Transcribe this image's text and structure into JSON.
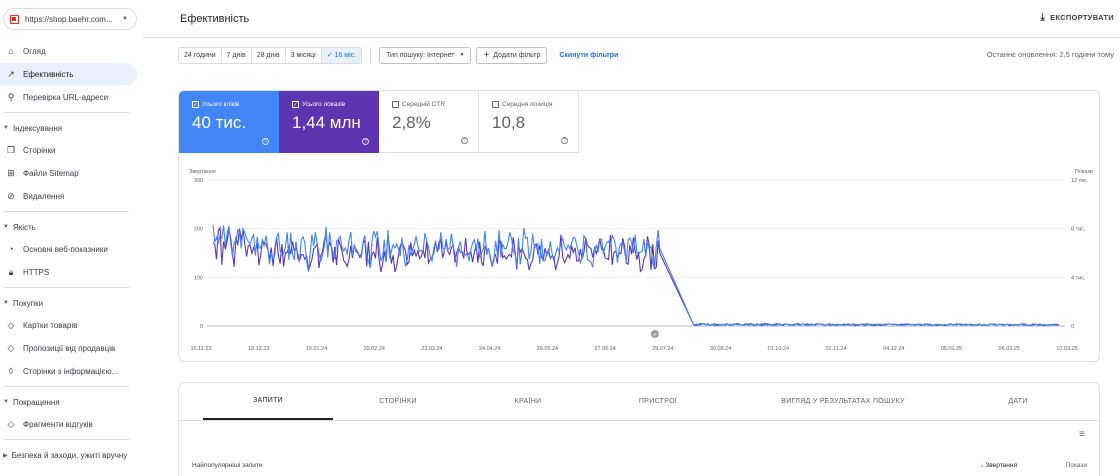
{
  "property": {
    "label": "https://shop.baehr.com..."
  },
  "sidebar": {
    "overview": "Огляд",
    "performance": "Ефективність",
    "url_inspection": "Перевірка URL-адреси",
    "indexing": {
      "title": "Індексування",
      "items": [
        "Сторінки",
        "Файли Sitemap",
        "Видалення"
      ]
    },
    "quality": {
      "title": "Якість",
      "items": [
        "Основні веб-показники",
        "HTTPS"
      ]
    },
    "shopping": {
      "title": "Покупки",
      "items": [
        "Картки товарів",
        "Пропозиції від продавців",
        "Сторінки з інформацією..."
      ]
    },
    "enhancements": {
      "title": "Покращення",
      "items": [
        "Фрагменти відгуків"
      ]
    },
    "security": {
      "title": "Безпека й заходи, ужиті вручну"
    }
  },
  "header": {
    "title": "Ефективність",
    "export": "ЕКСПОРТУВАТИ"
  },
  "filters": {
    "ranges": [
      "24 години",
      "7 днів",
      "28 днів",
      "3 місяці",
      "16 міс."
    ],
    "active_range_index": 4,
    "search_type": "Тип пошуку: Інтернет",
    "add_filter": "Додати фільтр",
    "reset": "Скинути фільтри",
    "last_update": "Останнє оновлення: 2,5 години тому"
  },
  "metrics": {
    "clicks": {
      "label": "Усього кліків",
      "value": "40 тис.",
      "checked": true,
      "color": "#4285f4"
    },
    "impressions": {
      "label": "Усього показів",
      "value": "1,44 млн",
      "checked": true,
      "color": "#5e35b1"
    },
    "ctr": {
      "label": "Середній CTR",
      "value": "2,8%",
      "checked": false
    },
    "position": {
      "label": "Середня позиція",
      "value": "10,8",
      "checked": false
    }
  },
  "chart_data": {
    "type": "line",
    "left_axis_label": "Звертання",
    "right_axis_label": "Покази",
    "left_ticks": [
      "0",
      "100",
      "200",
      "300"
    ],
    "right_ticks": [
      "0",
      "4 тис.",
      "8 тис.",
      "12 тис."
    ],
    "ylim_left": [
      0,
      300
    ],
    "ylim_right": [
      0,
      12000
    ],
    "x_tick_labels": [
      "16.11.23",
      "18.12.23",
      "19.01.24",
      "20.02.24",
      "23.03.24",
      "24.04.24",
      "26.05.24",
      "27.06.24",
      "29.07.24",
      "30.08.24",
      "01.10.24",
      "02.11.24",
      "04.12.24",
      "05.01.25",
      "06.02.25",
      "10.03.25"
    ],
    "drop_index": 8,
    "series": [
      {
        "name": "Усього кліків",
        "color": "#4285f4",
        "pre_level": 160,
        "pre_noise": 40,
        "post_level": 3
      },
      {
        "name": "Усього показів",
        "color": "#5e35b1",
        "pre_level": 6000,
        "pre_noise": 1400,
        "post_level": 120
      }
    ]
  },
  "table": {
    "tabs": [
      "ЗАПИТИ",
      "СТОРІНКИ",
      "КРАЇНИ",
      "ПРИСТРОЇ",
      "ВИГЛЯД У РЕЗУЛЬТАТАХ ПОШУКУ",
      "ДАТИ"
    ],
    "active_tab": 0,
    "col_query": "Найпопулярніші запити",
    "col_clicks": "Звертання",
    "col_impressions": "Покази"
  }
}
